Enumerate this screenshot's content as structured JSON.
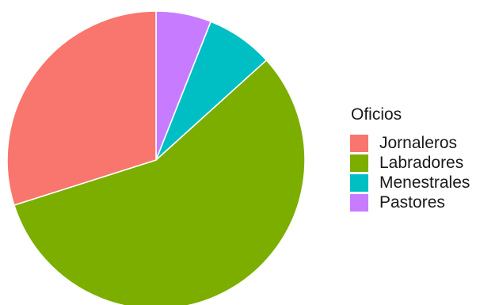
{
  "chart_data": {
    "type": "pie",
    "title": "",
    "start_angle_deg": 0,
    "direction": "clockwise",
    "legend": {
      "title": "Oficios",
      "placement": "right"
    },
    "slices": [
      {
        "label": "Pastores",
        "value": 6.0,
        "color": "#C77CFF"
      },
      {
        "label": "Menestrales",
        "value": 7.3,
        "color": "#00BFC4"
      },
      {
        "label": "Labradores",
        "value": 56.8,
        "color": "#7CAE00"
      },
      {
        "label": "Jornaleros",
        "value": 29.9,
        "color": "#F8766D"
      }
    ],
    "legend_order": [
      "Jornaleros",
      "Labradores",
      "Menestrales",
      "Pastores"
    ]
  }
}
